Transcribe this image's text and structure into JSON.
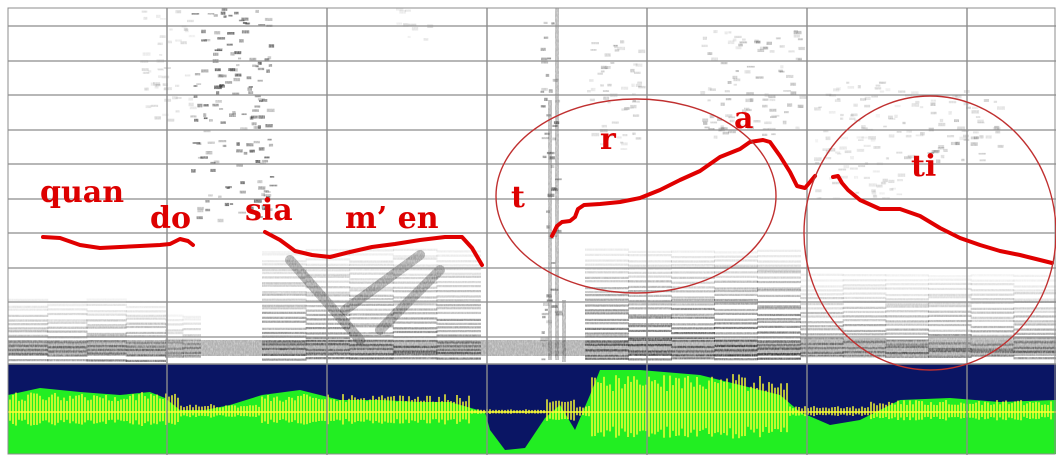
{
  "syllables": {
    "quan": "quan",
    "do": "do",
    "sia": "sia",
    "men": "m’ en",
    "t": "t",
    "r": "r",
    "a": "a",
    "ti": "ti"
  },
  "colors": {
    "pitch_contour": "#e00000",
    "annotation_label": "#dd0000",
    "highlight_circle": "#c03030",
    "spectrogram_ink": "#1a1a1a",
    "grid": "#8c8c8c",
    "waveform_background": "#0a1564",
    "waveform_envelope": "#22ee22",
    "waveform_signal": "#ffff33"
  }
}
